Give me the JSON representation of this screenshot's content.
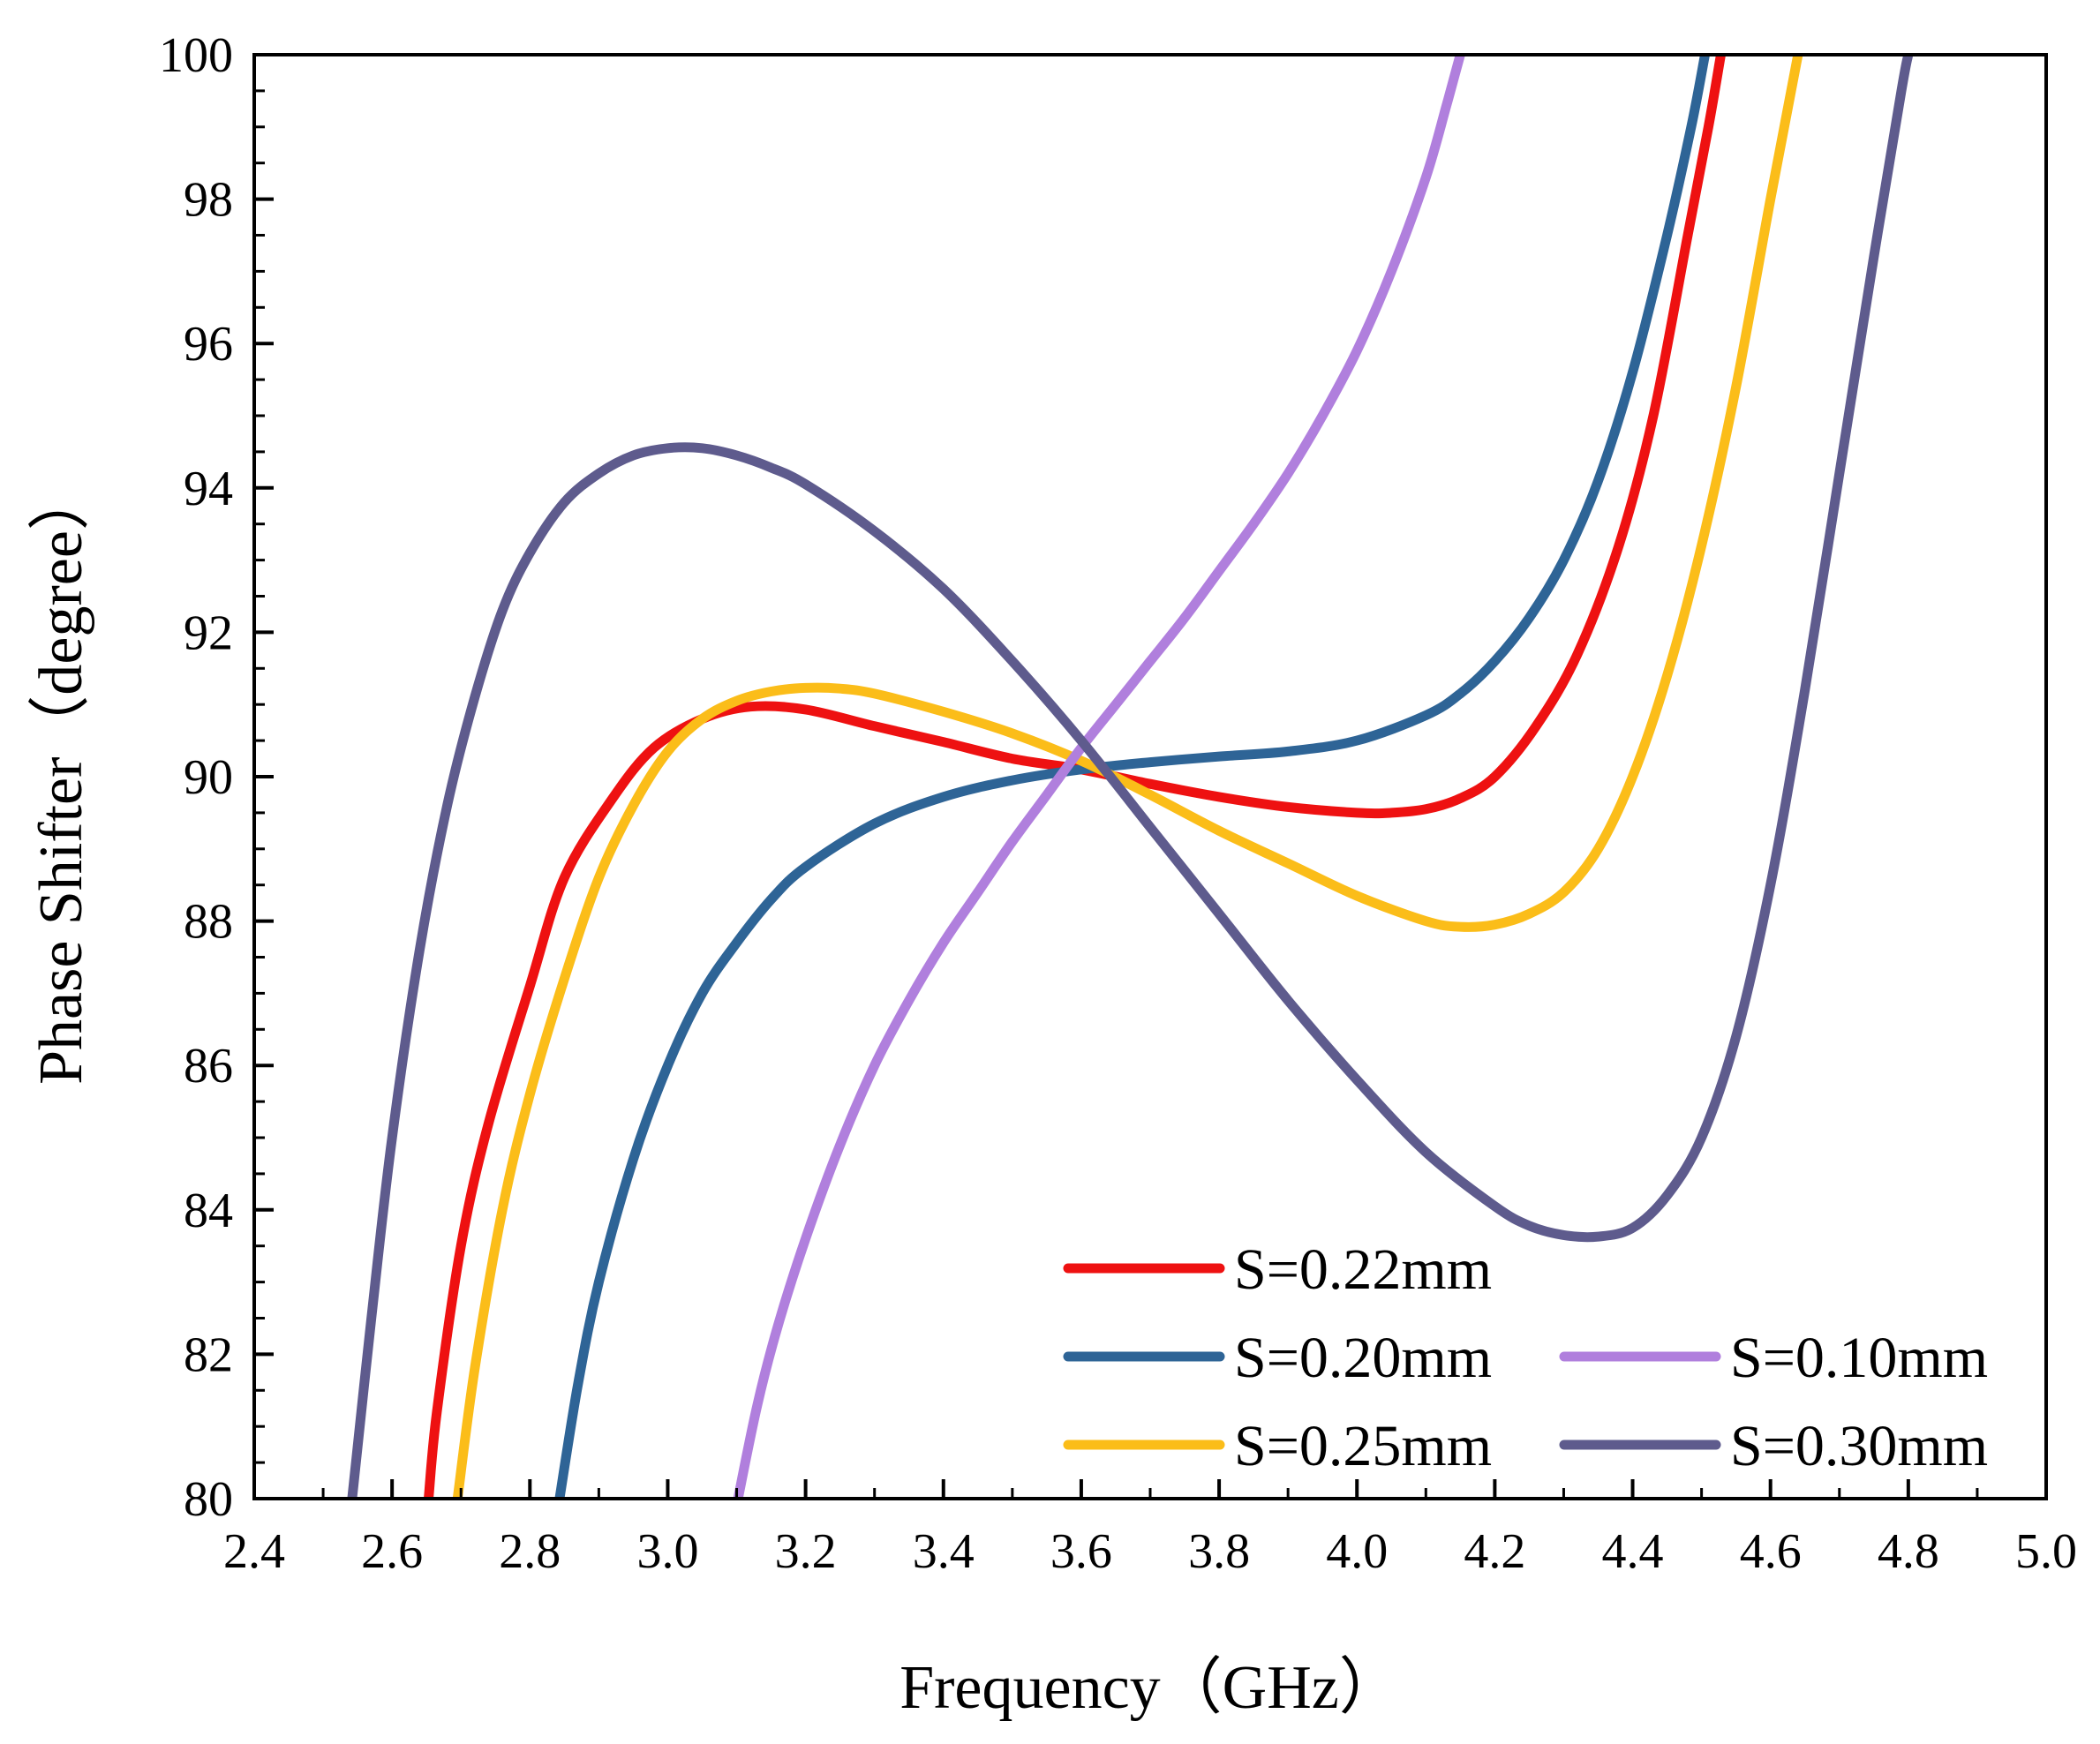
{
  "chart_data": {
    "type": "line",
    "title": "",
    "xlabel": "Frequency（GHz）",
    "ylabel": "Phase Shifter（degree）",
    "xlim": [
      2.4,
      5.0
    ],
    "ylim": [
      80,
      100
    ],
    "xticks": [
      "2.4",
      "2.6",
      "2.8",
      "3.0",
      "3.2",
      "3.4",
      "3.6",
      "3.8",
      "4.0",
      "4.2",
      "4.4",
      "4.6",
      "4.8",
      "5.0"
    ],
    "yticks": [
      "80",
      "82",
      "84",
      "86",
      "88",
      "90",
      "92",
      "94",
      "96",
      "98",
      "100"
    ],
    "grid": false,
    "legend_position": "bottom-right",
    "series": [
      {
        "name": "S=0.22mm",
        "color": "#ee1111",
        "points": [
          [
            2.653,
            80
          ],
          [
            2.665,
            81.2
          ],
          [
            2.7,
            83.5
          ],
          [
            2.74,
            85.2
          ],
          [
            2.8,
            87.1
          ],
          [
            2.85,
            88.6
          ],
          [
            2.92,
            89.7
          ],
          [
            2.98,
            90.4
          ],
          [
            3.05,
            90.8
          ],
          [
            3.12,
            90.97
          ],
          [
            3.2,
            90.93
          ],
          [
            3.3,
            90.7
          ],
          [
            3.4,
            90.48
          ],
          [
            3.5,
            90.25
          ],
          [
            3.6,
            90.1
          ],
          [
            3.7,
            89.9
          ],
          [
            3.8,
            89.72
          ],
          [
            3.9,
            89.58
          ],
          [
            4.0,
            89.5
          ],
          [
            4.05,
            89.5
          ],
          [
            4.1,
            89.55
          ],
          [
            4.15,
            89.7
          ],
          [
            4.2,
            90.0
          ],
          [
            4.26,
            90.7
          ],
          [
            4.32,
            91.7
          ],
          [
            4.38,
            93.2
          ],
          [
            4.43,
            95.0
          ],
          [
            4.48,
            97.5
          ],
          [
            4.51,
            99.0
          ],
          [
            4.528,
            100
          ]
        ]
      },
      {
        "name": "S=0.20mm",
        "color": "#2e6496",
        "points": [
          [
            2.843,
            80
          ],
          [
            2.87,
            81.6
          ],
          [
            2.9,
            83.0
          ],
          [
            2.95,
            84.7
          ],
          [
            3.0,
            86.0
          ],
          [
            3.05,
            87.0
          ],
          [
            3.1,
            87.7
          ],
          [
            3.15,
            88.3
          ],
          [
            3.2,
            88.75
          ],
          [
            3.3,
            89.35
          ],
          [
            3.4,
            89.72
          ],
          [
            3.5,
            89.95
          ],
          [
            3.6,
            90.1
          ],
          [
            3.7,
            90.2
          ],
          [
            3.8,
            90.28
          ],
          [
            3.9,
            90.35
          ],
          [
            4.0,
            90.5
          ],
          [
            4.1,
            90.85
          ],
          [
            4.15,
            91.15
          ],
          [
            4.2,
            91.6
          ],
          [
            4.25,
            92.2
          ],
          [
            4.3,
            93.0
          ],
          [
            4.35,
            94.1
          ],
          [
            4.4,
            95.6
          ],
          [
            4.45,
            97.5
          ],
          [
            4.485,
            99.0
          ],
          [
            4.505,
            100
          ]
        ]
      },
      {
        "name": "S=0.25mm",
        "color": "#fbbd19",
        "points": [
          [
            2.695,
            80
          ],
          [
            2.72,
            81.8
          ],
          [
            2.76,
            84.0
          ],
          [
            2.8,
            85.6
          ],
          [
            2.85,
            87.2
          ],
          [
            2.9,
            88.6
          ],
          [
            2.95,
            89.6
          ],
          [
            3.0,
            90.35
          ],
          [
            3.05,
            90.8
          ],
          [
            3.1,
            91.05
          ],
          [
            3.15,
            91.18
          ],
          [
            3.2,
            91.23
          ],
          [
            3.25,
            91.22
          ],
          [
            3.3,
            91.15
          ],
          [
            3.4,
            90.9
          ],
          [
            3.5,
            90.6
          ],
          [
            3.6,
            90.22
          ],
          [
            3.7,
            89.75
          ],
          [
            3.8,
            89.25
          ],
          [
            3.9,
            88.8
          ],
          [
            4.0,
            88.35
          ],
          [
            4.1,
            88.0
          ],
          [
            4.15,
            87.92
          ],
          [
            4.2,
            87.95
          ],
          [
            4.25,
            88.1
          ],
          [
            4.3,
            88.4
          ],
          [
            4.35,
            89.0
          ],
          [
            4.4,
            90.0
          ],
          [
            4.45,
            91.4
          ],
          [
            4.5,
            93.2
          ],
          [
            4.55,
            95.4
          ],
          [
            4.6,
            98.0
          ],
          [
            4.63,
            99.5
          ],
          [
            4.64,
            100
          ]
        ]
      },
      {
        "name": "S=0.10mm",
        "color": "#b07fdd",
        "points": [
          [
            3.102,
            80
          ],
          [
            3.13,
            81.3
          ],
          [
            3.16,
            82.4
          ],
          [
            3.2,
            83.6
          ],
          [
            3.25,
            84.9
          ],
          [
            3.3,
            86.0
          ],
          [
            3.35,
            86.9
          ],
          [
            3.4,
            87.7
          ],
          [
            3.45,
            88.4
          ],
          [
            3.5,
            89.1
          ],
          [
            3.55,
            89.75
          ],
          [
            3.6,
            90.4
          ],
          [
            3.65,
            91.0
          ],
          [
            3.7,
            91.6
          ],
          [
            3.75,
            92.2
          ],
          [
            3.8,
            92.85
          ],
          [
            3.85,
            93.5
          ],
          [
            3.9,
            94.2
          ],
          [
            3.95,
            95.0
          ],
          [
            4.0,
            95.9
          ],
          [
            4.05,
            97.0
          ],
          [
            4.1,
            98.3
          ],
          [
            4.13,
            99.3
          ],
          [
            4.15,
            100
          ]
        ]
      },
      {
        "name": "S=0.30mm",
        "color": "#5e5b8d",
        "points": [
          [
            2.542,
            80
          ],
          [
            2.57,
            82.5
          ],
          [
            2.6,
            85.0
          ],
          [
            2.64,
            87.6
          ],
          [
            2.68,
            89.6
          ],
          [
            2.72,
            91.1
          ],
          [
            2.76,
            92.3
          ],
          [
            2.8,
            93.1
          ],
          [
            2.85,
            93.8
          ],
          [
            2.9,
            94.2
          ],
          [
            2.95,
            94.45
          ],
          [
            3.0,
            94.55
          ],
          [
            3.05,
            94.55
          ],
          [
            3.1,
            94.45
          ],
          [
            3.15,
            94.28
          ],
          [
            3.2,
            94.05
          ],
          [
            3.3,
            93.4
          ],
          [
            3.4,
            92.6
          ],
          [
            3.5,
            91.6
          ],
          [
            3.6,
            90.5
          ],
          [
            3.7,
            89.3
          ],
          [
            3.8,
            88.1
          ],
          [
            3.9,
            86.9
          ],
          [
            4.0,
            85.8
          ],
          [
            4.1,
            84.8
          ],
          [
            4.2,
            84.05
          ],
          [
            4.25,
            83.78
          ],
          [
            4.3,
            83.65
          ],
          [
            4.35,
            83.63
          ],
          [
            4.4,
            83.75
          ],
          [
            4.45,
            84.2
          ],
          [
            4.5,
            85.0
          ],
          [
            4.55,
            86.4
          ],
          [
            4.6,
            88.5
          ],
          [
            4.65,
            91.2
          ],
          [
            4.7,
            94.2
          ],
          [
            4.75,
            97.2
          ],
          [
            4.79,
            99.5
          ],
          [
            4.8,
            100
          ]
        ]
      }
    ]
  }
}
